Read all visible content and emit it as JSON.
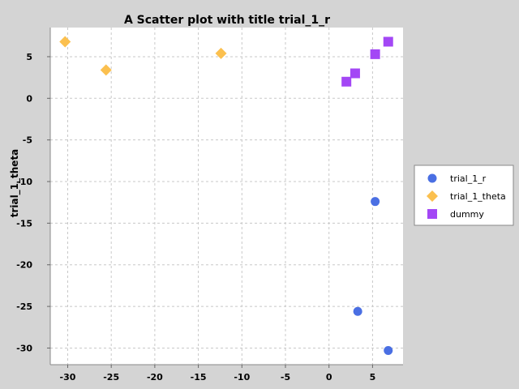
{
  "chart_data": {
    "type": "scatter",
    "title": "A Scatter plot with title trial_1_r",
    "xlabel": "",
    "ylabel": "trial_1_theta",
    "xlim": [
      -32,
      8.5
    ],
    "ylim": [
      -32,
      8.5
    ],
    "xticks": [
      -30,
      -25,
      -20,
      -15,
      -10,
      -5,
      0,
      5
    ],
    "yticks": [
      5,
      0,
      -5,
      -10,
      -15,
      -20,
      -25,
      -30
    ],
    "grid": true,
    "legend_position": "right",
    "series": [
      {
        "name": "trial_1_r",
        "marker": "circle",
        "color": "#4a6fe3",
        "points": [
          [
            5.3,
            -12.4
          ],
          [
            3.3,
            -25.6
          ],
          [
            6.8,
            -30.3
          ]
        ]
      },
      {
        "name": "trial_1_theta",
        "marker": "diamond",
        "color": "#fbc04f",
        "points": [
          [
            -30.3,
            6.8
          ],
          [
            -25.6,
            3.4
          ],
          [
            -12.4,
            5.4
          ]
        ]
      },
      {
        "name": "dummy",
        "marker": "square",
        "color": "#a347f5",
        "points": [
          [
            2.0,
            2.0
          ],
          [
            3.0,
            3.0
          ],
          [
            5.3,
            5.3
          ],
          [
            6.8,
            6.8
          ]
        ]
      }
    ]
  }
}
